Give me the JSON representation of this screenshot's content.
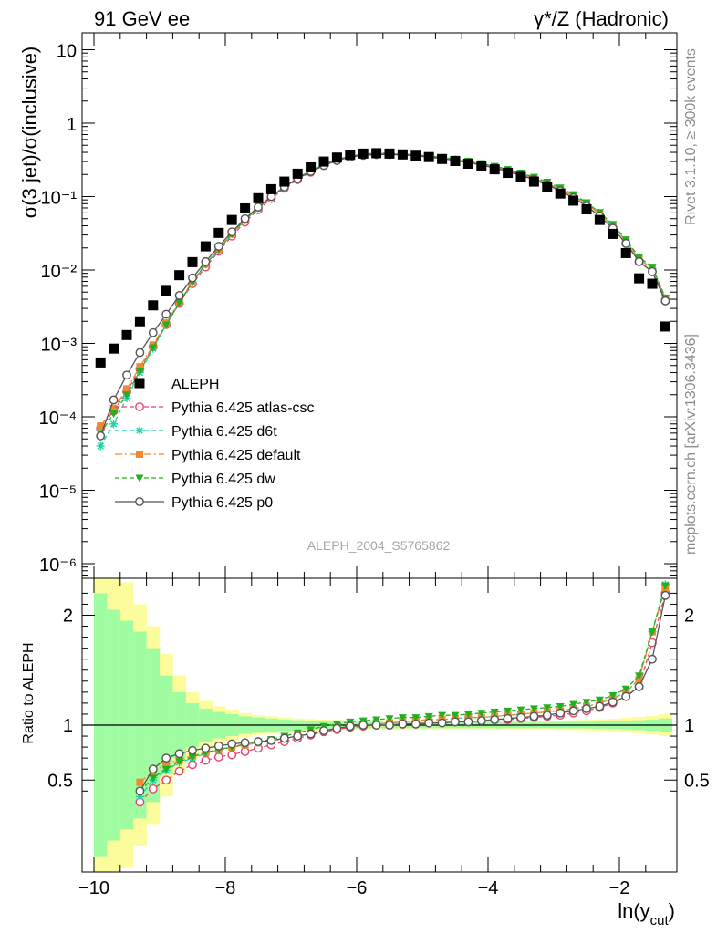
{
  "header": {
    "left_label": "91 GeV ee",
    "right_label": "γ*/Z (Hadronic)"
  },
  "side_labels": {
    "rivet": "Rivet 3.1.10, ≥ 300k events",
    "site": "mcplots.cern.ch [arXiv:1306.3436]"
  },
  "watermark": "ALEPH_2004_S5765862",
  "chart_data": [
    {
      "type": "line",
      "panel": "main",
      "ylabel": "σ(3 jet)/σ(inclusive)",
      "xlabel": "ln(y_cut)",
      "yscale": "log",
      "ylim": [
        5e-07,
        20
      ],
      "xlim": [
        -10.2,
        -1.2
      ],
      "ytick_labels": [
        "10⁻⁶",
        "10⁻⁵",
        "10⁻⁴",
        "10⁻³",
        "10⁻²",
        "10⁻¹",
        "1",
        "10"
      ],
      "legend_position": "lower-left",
      "x": [
        -9.9,
        -9.7,
        -9.5,
        -9.3,
        -9.1,
        -8.9,
        -8.7,
        -8.5,
        -8.3,
        -8.1,
        -7.9,
        -7.7,
        -7.5,
        -7.3,
        -7.1,
        -6.9,
        -6.7,
        -6.5,
        -6.3,
        -6.1,
        -5.9,
        -5.7,
        -5.5,
        -5.3,
        -5.1,
        -4.9,
        -4.7,
        -4.5,
        -4.3,
        -4.1,
        -3.9,
        -3.7,
        -3.5,
        -3.3,
        -3.1,
        -2.9,
        -2.7,
        -2.5,
        -2.3,
        -2.1,
        -1.9,
        -1.7,
        -1.5,
        -1.3
      ],
      "series": [
        {
          "name": "ALEPH",
          "color": "#000000",
          "marker": "square",
          "line": "none",
          "values": [
            0.00055,
            0.00085,
            0.0013,
            0.002,
            0.0033,
            0.0052,
            0.0085,
            0.0128,
            0.021,
            0.032,
            0.048,
            0.069,
            0.095,
            0.126,
            0.16,
            0.205,
            0.25,
            0.3,
            0.34,
            0.37,
            0.385,
            0.39,
            0.385,
            0.375,
            0.36,
            0.345,
            0.325,
            0.305,
            0.28,
            0.26,
            0.235,
            0.21,
            0.185,
            0.16,
            0.135,
            0.11,
            0.088,
            0.067,
            0.048,
            0.031,
            0.017,
            0.0077,
            0.0065,
            0.0017
          ]
        },
        {
          "name": "Pythia 6.425 atlas-csc",
          "color": "#e8456e",
          "marker": "circle-open",
          "line": "dashed",
          "values": [
            7e-05,
            0.00012,
            0.00022,
            0.00045,
            0.0009,
            0.0018,
            0.0035,
            0.0065,
            0.011,
            0.018,
            0.029,
            0.045,
            0.066,
            0.094,
            0.13,
            0.17,
            0.215,
            0.265,
            0.31,
            0.345,
            0.365,
            0.375,
            0.375,
            0.37,
            0.36,
            0.345,
            0.33,
            0.31,
            0.29,
            0.27,
            0.245,
            0.22,
            0.195,
            0.17,
            0.145,
            0.12,
            0.096,
            0.074,
            0.054,
            0.037,
            0.023,
            0.013,
            0.0095,
            0.0038
          ]
        },
        {
          "name": "Pythia 6.425 d6t",
          "color": "#1fd2aa",
          "marker": "asterisk",
          "line": "dashed",
          "values": [
            4e-05,
            8e-05,
            0.00018,
            0.0004,
            0.00085,
            0.0018,
            0.0036,
            0.0068,
            0.012,
            0.019,
            0.031,
            0.048,
            0.07,
            0.1,
            0.135,
            0.18,
            0.225,
            0.275,
            0.32,
            0.355,
            0.375,
            0.385,
            0.385,
            0.378,
            0.366,
            0.352,
            0.336,
            0.318,
            0.298,
            0.276,
            0.253,
            0.228,
            0.203,
            0.177,
            0.151,
            0.126,
            0.102,
            0.079,
            0.058,
            0.04,
            0.025,
            0.014,
            0.0105,
            0.0041
          ]
        },
        {
          "name": "Pythia 6.425 default",
          "color": "#f08a30",
          "marker": "square-filled",
          "line": "dashdot",
          "values": [
            7.5e-05,
            0.00013,
            0.00024,
            0.00048,
            0.00095,
            0.0019,
            0.0037,
            0.007,
            0.012,
            0.019,
            0.031,
            0.048,
            0.07,
            0.1,
            0.135,
            0.18,
            0.225,
            0.275,
            0.32,
            0.355,
            0.375,
            0.385,
            0.385,
            0.378,
            0.366,
            0.352,
            0.336,
            0.318,
            0.298,
            0.276,
            0.253,
            0.228,
            0.203,
            0.177,
            0.151,
            0.126,
            0.102,
            0.079,
            0.058,
            0.04,
            0.025,
            0.014,
            0.0105,
            0.0041
          ]
        },
        {
          "name": "Pythia 6.425 dw",
          "color": "#22b020",
          "marker": "triangle-down",
          "line": "dashed",
          "values": [
            6e-05,
            0.00011,
            0.0002,
            0.00042,
            0.00088,
            0.0018,
            0.0036,
            0.0068,
            0.012,
            0.019,
            0.031,
            0.048,
            0.07,
            0.1,
            0.135,
            0.18,
            0.225,
            0.275,
            0.32,
            0.355,
            0.378,
            0.39,
            0.39,
            0.383,
            0.372,
            0.358,
            0.342,
            0.325,
            0.305,
            0.283,
            0.26,
            0.235,
            0.21,
            0.184,
            0.158,
            0.132,
            0.107,
            0.083,
            0.061,
            0.042,
            0.026,
            0.015,
            0.011,
            0.0042
          ]
        },
        {
          "name": "Pythia 6.425 p0",
          "color": "#555555",
          "marker": "circle-open",
          "line": "solid",
          "values": [
            5.5e-05,
            0.00017,
            0.00037,
            0.00075,
            0.0014,
            0.0025,
            0.0045,
            0.0078,
            0.013,
            0.021,
            0.033,
            0.05,
            0.072,
            0.1,
            0.135,
            0.175,
            0.22,
            0.265,
            0.31,
            0.345,
            0.365,
            0.375,
            0.375,
            0.37,
            0.36,
            0.345,
            0.33,
            0.31,
            0.29,
            0.27,
            0.245,
            0.22,
            0.195,
            0.17,
            0.145,
            0.12,
            0.096,
            0.074,
            0.054,
            0.037,
            0.023,
            0.013,
            0.0095,
            0.0038
          ]
        }
      ]
    },
    {
      "type": "line",
      "panel": "ratio",
      "ylabel": "Ratio to ALEPH",
      "xlabel": "ln(y_cut)",
      "ylim": [
        0.35,
        2.35
      ],
      "xlim": [
        -10.2,
        -1.2
      ],
      "ytick_labels": [
        "0.5",
        "1",
        "2"
      ],
      "xtick_labels": [
        "−10",
        "−8",
        "−6",
        "−4",
        "−2"
      ],
      "reference_line": 1,
      "bin_edges": [
        -10.0,
        -9.8,
        -9.6,
        -9.4,
        -9.2,
        -9.0,
        -8.8,
        -8.6,
        -8.4,
        -8.2,
        -8.0,
        -7.8,
        -7.6,
        -7.4,
        -7.2,
        -7.0,
        -6.8,
        -6.6,
        -6.4,
        -6.2,
        -6.0,
        -5.8,
        -5.6,
        -5.4,
        -5.2,
        -5.0,
        -4.8,
        -4.6,
        -4.4,
        -4.2,
        -4.0,
        -3.8,
        -3.6,
        -3.4,
        -3.2,
        -3.0,
        -2.8,
        -2.6,
        -2.4,
        -2.2,
        -2.0,
        -1.8,
        -1.6,
        -1.4,
        -1.2
      ],
      "band_inner_color": "#a0fca0",
      "band_outer_color": "#fcfc9c",
      "band_inner_half": [
        1.2,
        1.05,
        0.95,
        0.85,
        0.7,
        0.45,
        0.3,
        0.2,
        0.15,
        0.12,
        0.1,
        0.08,
        0.07,
        0.06,
        0.05,
        0.045,
        0.04,
        0.035,
        0.03,
        0.03,
        0.028,
        0.028,
        0.028,
        0.028,
        0.028,
        0.028,
        0.028,
        0.028,
        0.028,
        0.028,
        0.028,
        0.028,
        0.028,
        0.028,
        0.028,
        0.028,
        0.03,
        0.03,
        0.032,
        0.035,
        0.04,
        0.045,
        0.05,
        0.06
      ],
      "band_outer_half": [
        1.6,
        1.45,
        1.3,
        1.1,
        0.9,
        0.65,
        0.45,
        0.3,
        0.22,
        0.17,
        0.14,
        0.11,
        0.09,
        0.08,
        0.07,
        0.06,
        0.055,
        0.05,
        0.045,
        0.043,
        0.042,
        0.042,
        0.042,
        0.042,
        0.042,
        0.042,
        0.042,
        0.042,
        0.042,
        0.042,
        0.042,
        0.042,
        0.042,
        0.042,
        0.042,
        0.042,
        0.045,
        0.048,
        0.052,
        0.058,
        0.065,
        0.075,
        0.085,
        0.1
      ],
      "x": [
        -9.3,
        -9.1,
        -8.9,
        -8.7,
        -8.5,
        -8.3,
        -8.1,
        -7.9,
        -7.7,
        -7.5,
        -7.3,
        -7.1,
        -6.9,
        -6.7,
        -6.5,
        -6.3,
        -6.1,
        -5.9,
        -5.7,
        -5.5,
        -5.3,
        -5.1,
        -4.9,
        -4.7,
        -4.5,
        -4.3,
        -4.1,
        -3.9,
        -3.7,
        -3.5,
        -3.3,
        -3.1,
        -2.9,
        -2.7,
        -2.5,
        -2.3,
        -2.1,
        -1.9,
        -1.7,
        -1.5,
        -1.3
      ],
      "series": [
        {
          "name": "Pythia 6.425 atlas-csc",
          "color": "#e8456e",
          "marker": "circle-open",
          "line": "dashed",
          "values": [
            0.3,
            0.42,
            0.5,
            0.58,
            0.64,
            0.68,
            0.71,
            0.73,
            0.76,
            0.79,
            0.82,
            0.85,
            0.88,
            0.91,
            0.94,
            0.96,
            0.98,
            0.99,
            1.0,
            1.0,
            1.01,
            1.01,
            1.02,
            1.02,
            1.03,
            1.03,
            1.04,
            1.05,
            1.05,
            1.06,
            1.07,
            1.08,
            1.09,
            1.11,
            1.13,
            1.16,
            1.2,
            1.26,
            1.35,
            1.75,
            2.2
          ]
        },
        {
          "name": "Pythia 6.425 d6t",
          "color": "#1fd2aa",
          "marker": "asterisk",
          "line": "dashed",
          "values": [
            0.35,
            0.5,
            0.59,
            0.66,
            0.7,
            0.74,
            0.77,
            0.8,
            0.82,
            0.84,
            0.86,
            0.88,
            0.9,
            0.93,
            0.95,
            0.97,
            0.99,
            1.0,
            1.01,
            1.02,
            1.03,
            1.04,
            1.05,
            1.05,
            1.06,
            1.07,
            1.07,
            1.08,
            1.09,
            1.1,
            1.11,
            1.12,
            1.13,
            1.15,
            1.17,
            1.2,
            1.24,
            1.3,
            1.42,
            1.85,
            2.28
          ]
        },
        {
          "name": "Pythia 6.425 default",
          "color": "#f08a30",
          "marker": "square-filled",
          "line": "dashdot",
          "values": [
            0.48,
            0.58,
            0.64,
            0.69,
            0.72,
            0.75,
            0.78,
            0.8,
            0.82,
            0.84,
            0.86,
            0.88,
            0.9,
            0.93,
            0.95,
            0.97,
            0.99,
            1.0,
            1.01,
            1.02,
            1.03,
            1.04,
            1.05,
            1.05,
            1.06,
            1.07,
            1.07,
            1.08,
            1.09,
            1.1,
            1.11,
            1.12,
            1.13,
            1.15,
            1.17,
            1.2,
            1.24,
            1.3,
            1.42,
            1.85,
            2.25
          ]
        },
        {
          "name": "Pythia 6.425 dw",
          "color": "#22b020",
          "marker": "triangle-down",
          "line": "dashed",
          "values": [
            0.4,
            0.52,
            0.6,
            0.67,
            0.71,
            0.75,
            0.78,
            0.8,
            0.83,
            0.85,
            0.87,
            0.9,
            0.93,
            0.96,
            0.99,
            1.01,
            1.03,
            1.04,
            1.05,
            1.06,
            1.07,
            1.07,
            1.08,
            1.09,
            1.09,
            1.1,
            1.11,
            1.12,
            1.13,
            1.14,
            1.15,
            1.16,
            1.17,
            1.19,
            1.21,
            1.23,
            1.27,
            1.33,
            1.45,
            1.85,
            2.27
          ]
        },
        {
          "name": "Pythia 6.425 p0",
          "color": "#555555",
          "marker": "circle-open",
          "line": "solid",
          "values": [
            0.4,
            0.6,
            0.7,
            0.74,
            0.77,
            0.79,
            0.81,
            0.83,
            0.84,
            0.85,
            0.86,
            0.88,
            0.9,
            0.92,
            0.95,
            0.97,
            0.99,
            1.0,
            1.0,
            1.0,
            1.01,
            1.01,
            1.02,
            1.02,
            1.03,
            1.03,
            1.04,
            1.05,
            1.06,
            1.07,
            1.08,
            1.09,
            1.11,
            1.13,
            1.15,
            1.17,
            1.21,
            1.26,
            1.35,
            1.6,
            2.18
          ]
        }
      ]
    }
  ]
}
